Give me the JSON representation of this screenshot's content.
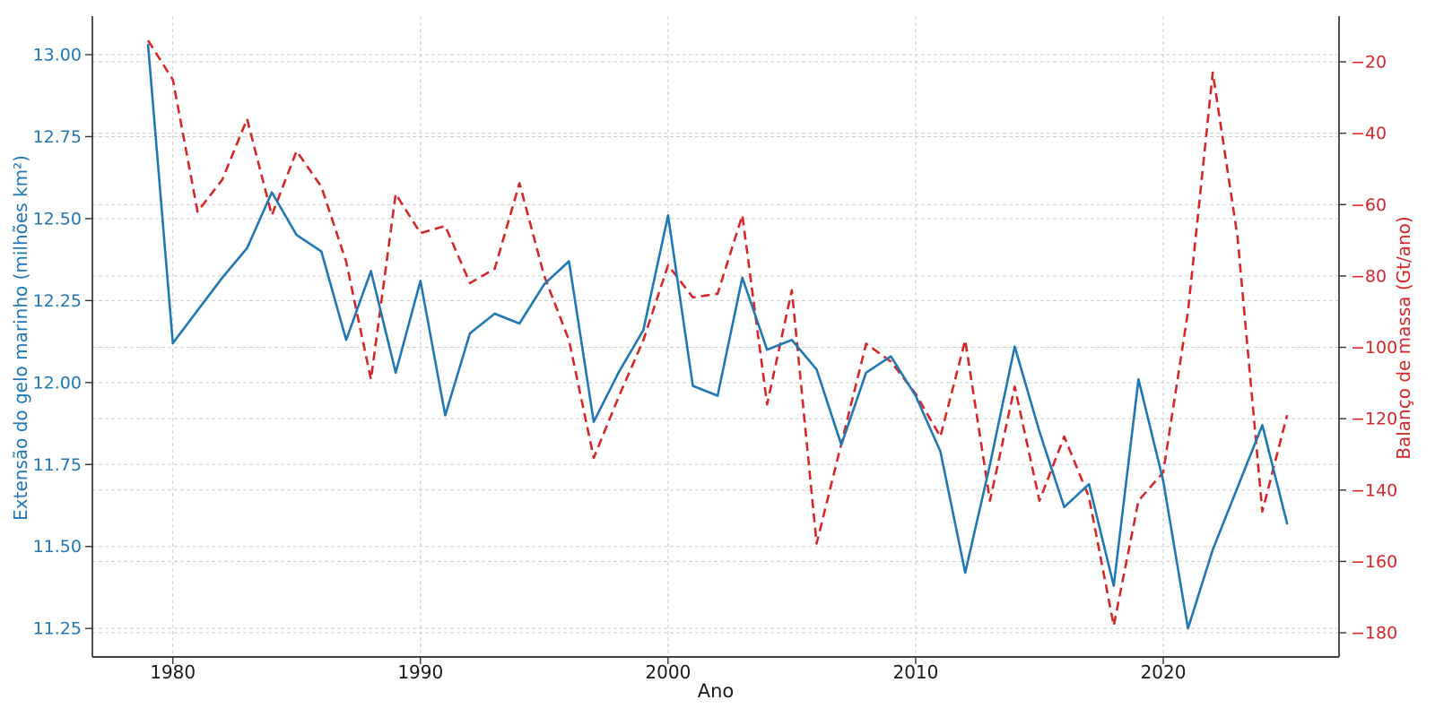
{
  "chart_data": {
    "type": "line",
    "title": "",
    "xlabel": "Ano",
    "grid": true,
    "legend_position": "none",
    "x_tick_labels": [
      "1980",
      "1990",
      "2000",
      "2010",
      "2020"
    ],
    "x_tick_values": [
      1980,
      1990,
      2000,
      2010,
      2020
    ],
    "years": [
      1979,
      1980,
      1981,
      1982,
      1983,
      1984,
      1985,
      1986,
      1987,
      1988,
      1989,
      1990,
      1991,
      1992,
      1993,
      1994,
      1995,
      1996,
      1997,
      1998,
      1999,
      2000,
      2001,
      2002,
      2003,
      2004,
      2005,
      2006,
      2007,
      2008,
      2009,
      2010,
      2011,
      2012,
      2013,
      2014,
      2015,
      2016,
      2017,
      2018,
      2019,
      2020,
      2021,
      2022,
      2023,
      2024,
      2025
    ],
    "series": [
      {
        "name": "Extensão do gelo marinho (milhões km²)",
        "axis": "left",
        "color": "#1f77b4",
        "line_style": "solid",
        "values": [
          13.03,
          12.12,
          12.22,
          12.32,
          12.41,
          12.58,
          12.45,
          12.4,
          12.13,
          12.34,
          12.03,
          12.31,
          11.9,
          12.15,
          12.21,
          12.18,
          12.3,
          12.37,
          11.88,
          12.03,
          12.16,
          12.51,
          11.99,
          11.96,
          12.32,
          12.1,
          12.13,
          12.04,
          11.81,
          12.03,
          12.08,
          11.96,
          11.79,
          11.42,
          11.75,
          12.11,
          11.85,
          11.62,
          11.69,
          11.38,
          12.01,
          11.7,
          11.25,
          11.49,
          11.68,
          11.87,
          11.57
        ]
      },
      {
        "name": "Balanço de massa (Gt/ano)",
        "axis": "right",
        "color": "#d62728",
        "line_style": "dashed",
        "values": [
          -14,
          -25,
          -62,
          -53,
          -36,
          -63,
          -45,
          -55,
          -76,
          -109,
          -57,
          -68,
          -66,
          -82,
          -78,
          -54,
          -80,
          -98,
          -131,
          -114,
          -98,
          -77,
          -86,
          -85,
          -63,
          -116,
          -84,
          -155,
          -127,
          -99,
          -104,
          -113,
          -125,
          -98,
          -143,
          -111,
          -143,
          -125,
          -142,
          -178,
          -143,
          -135,
          -90,
          -23,
          -69,
          -146,
          -119
        ]
      }
    ],
    "left_axis": {
      "label": "Extensão do gelo marinho (milhões km²)",
      "color": "#1f77b4",
      "tick_labels": [
        "13.00",
        "12.75",
        "12.50",
        "12.25",
        "12.00",
        "11.75",
        "11.50",
        "11.25"
      ],
      "tick_values": [
        13.0,
        12.75,
        12.5,
        12.25,
        12.0,
        11.75,
        11.5,
        11.25
      ],
      "range": [
        11.163,
        13.118
      ]
    },
    "right_axis": {
      "label": "Balanço de massa (Gt/ano)",
      "color": "#d62728",
      "tick_labels": [
        "−20",
        "−40",
        "−60",
        "−80",
        "−100",
        "−120",
        "−140",
        "−160",
        "−180"
      ],
      "tick_values": [
        -20,
        -40,
        -60,
        -80,
        -100,
        -120,
        -140,
        -160,
        -180
      ],
      "range": [
        -186.8,
        -7.2
      ]
    },
    "x_range": [
      1976.75,
      2027.1
    ],
    "grid_color": "#cccccc",
    "spine_color": "#262626",
    "tick_color": "#333333",
    "x_text_color": "#1a1a1a"
  }
}
